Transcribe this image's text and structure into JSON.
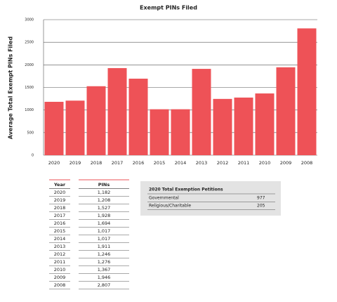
{
  "chart_data": {
    "type": "bar",
    "title": "Exempt PINs Filed",
    "y_label": "Average Total Exempt PINs Filed",
    "categories": [
      "2020",
      "2019",
      "2018",
      "2017",
      "2016",
      "2015",
      "2014",
      "2013",
      "2012",
      "2011",
      "2010",
      "2009",
      "2008"
    ],
    "values": [
      1182,
      1208,
      1527,
      1928,
      1694,
      1017,
      1017,
      1911,
      1246,
      1276,
      1367,
      1946,
      2807
    ],
    "color": "#ee5257",
    "ylim": [
      0,
      3000
    ],
    "yticks": [
      0,
      500,
      1000,
      1500,
      2000,
      2500,
      3000
    ],
    "grid": true
  },
  "pins_table": {
    "header": [
      "Year",
      "PINs"
    ],
    "rows": [
      [
        "2020",
        "1,182"
      ],
      [
        "2019",
        "1,208"
      ],
      [
        "2018",
        "1,527"
      ],
      [
        "2017",
        "1,928"
      ],
      [
        "2016",
        "1,694"
      ],
      [
        "2015",
        "1,017"
      ],
      [
        "2014",
        "1,017"
      ],
      [
        "2013",
        "1,911"
      ],
      [
        "2012",
        "1,246"
      ],
      [
        "2011",
        "1,276"
      ],
      [
        "2010",
        "1,367"
      ],
      [
        "2009",
        "1,946"
      ],
      [
        "2008",
        "2,807"
      ]
    ]
  },
  "petitions_table": {
    "title": "2020 Total Exemption Petitions",
    "rows": [
      [
        "Governmental",
        "977"
      ],
      [
        "Religious/Charitable",
        "205"
      ]
    ]
  }
}
